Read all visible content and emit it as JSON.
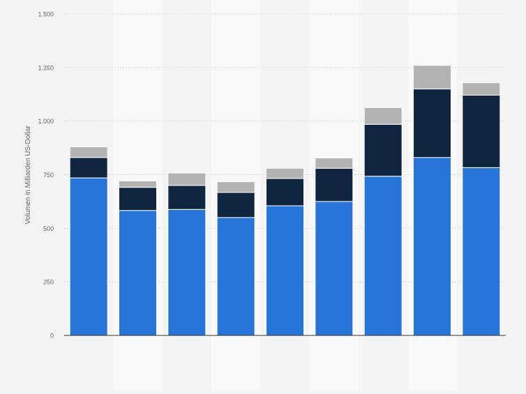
{
  "chart_data": {
    "type": "bar",
    "stacked": true,
    "title": "",
    "xlabel": "",
    "ylabel": "Volumen in Milliarden US-Dollar",
    "categories": [
      "",
      "",
      "",
      "",
      "",
      "",
      "",
      "",
      ""
    ],
    "ylim": [
      0,
      1500
    ],
    "yticks": [
      0,
      250,
      500,
      750,
      1000,
      1250,
      1500
    ],
    "ytick_labels": [
      "0",
      "250",
      "500",
      "750",
      "1.000",
      "1.250",
      "1.500"
    ],
    "grid": true,
    "legend": "none",
    "series": [
      {
        "color": "#2775d8",
        "values": [
          735,
          583,
          588,
          550,
          605,
          625,
          743,
          830,
          783
        ]
      },
      {
        "color": "#0f2540",
        "values": [
          95,
          108,
          112,
          117,
          127,
          155,
          242,
          320,
          338
        ]
      },
      {
        "color": "#b3b3b3",
        "values": [
          50,
          30,
          58,
          50,
          48,
          48,
          78,
          110,
          58
        ]
      }
    ],
    "colors": {
      "background": "#f4f4f4",
      "band": "#f9f9f9",
      "grid": "#dcdcdc",
      "axis": "#333333",
      "text": "#666666"
    }
  }
}
